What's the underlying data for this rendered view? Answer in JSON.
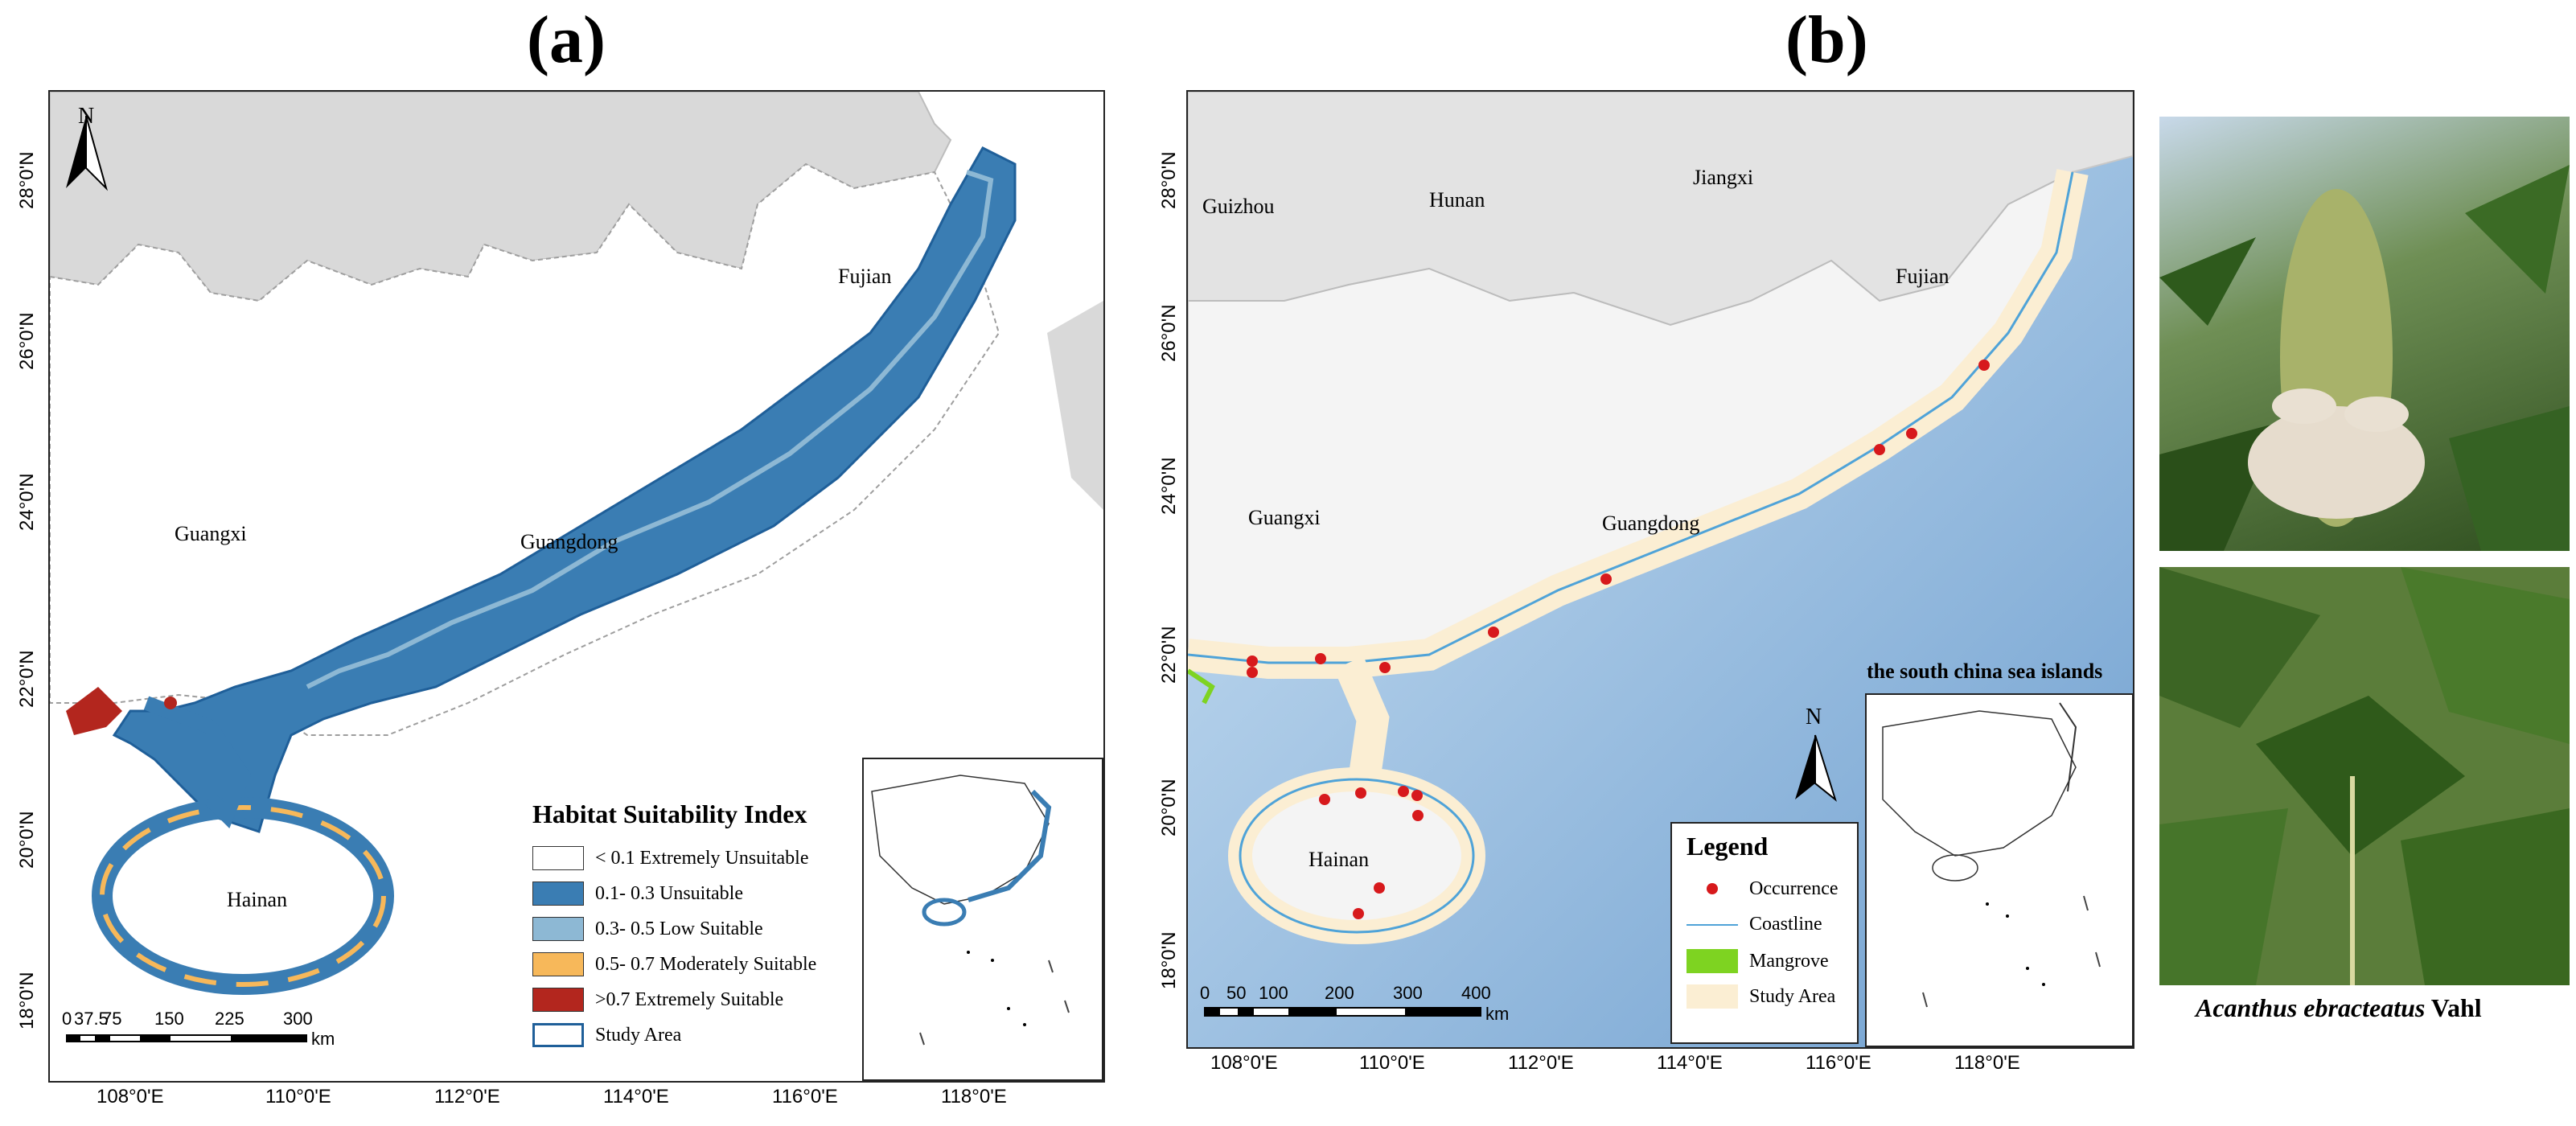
{
  "panel_a": {
    "label": "(a)",
    "north": "N",
    "regions": [
      "Fujian",
      "Guangxi",
      "Guangdong",
      "Hainan"
    ],
    "lat_ticks": [
      "28°0'N",
      "26°0'N",
      "24°0'N",
      "22°0'N",
      "20°0'N",
      "18°0'N"
    ],
    "lon_ticks": [
      "108°0'E",
      "110°0'E",
      "112°0'E",
      "114°0'E",
      "116°0'E",
      "118°0'E"
    ],
    "scale_labels": [
      "0",
      "37.5",
      "75",
      "150",
      "225",
      "300"
    ],
    "scale_unit": "km",
    "legend": {
      "title": "Habitat Suitability Index",
      "items": [
        {
          "label": "< 0.1  Extremely Unsuitable",
          "color": "#ffffff"
        },
        {
          "label": "0.1- 0.3  Unsuitable",
          "color": "#3a7db3"
        },
        {
          "label": "0.3- 0.5  Low Suitable",
          "color": "#8db8d4"
        },
        {
          "label": "0.5- 0.7  Moderately Suitable",
          "color": "#f7b85a"
        },
        {
          "label": ">0.7  Extremely Suitable",
          "color": "#b3261e"
        },
        {
          "label": "Study Area",
          "color": "outline"
        }
      ]
    }
  },
  "panel_b": {
    "label": "(b)",
    "north": "N",
    "regions": [
      "Guizhou",
      "Hunan",
      "Jiangxi",
      "Fujian",
      "Guangxi",
      "Guangdong",
      "Hainan"
    ],
    "inset_title": "the south china sea islands",
    "lat_ticks": [
      "28°0'N",
      "26°0'N",
      "24°0'N",
      "22°0'N",
      "20°0'N",
      "18°0'N"
    ],
    "lon_ticks": [
      "108°0'E",
      "110°0'E",
      "112°0'E",
      "114°0'E",
      "116°0'E",
      "118°0'E"
    ],
    "scale_labels": [
      "0",
      "50",
      "100",
      "200",
      "300",
      "400"
    ],
    "scale_unit": "km",
    "legend": {
      "title": "Legend",
      "items": [
        {
          "label": "Occurrence",
          "color": "#d7191c"
        },
        {
          "label": "Coastline",
          "color": "#4fa3d8"
        },
        {
          "label": "Mangrove",
          "color": "#7ed321"
        },
        {
          "label": "Study Area",
          "color": "#fbeed3"
        }
      ]
    }
  },
  "photos": {
    "caption_species": "Acanthus ebracteatus",
    "caption_author": " Vahl"
  }
}
